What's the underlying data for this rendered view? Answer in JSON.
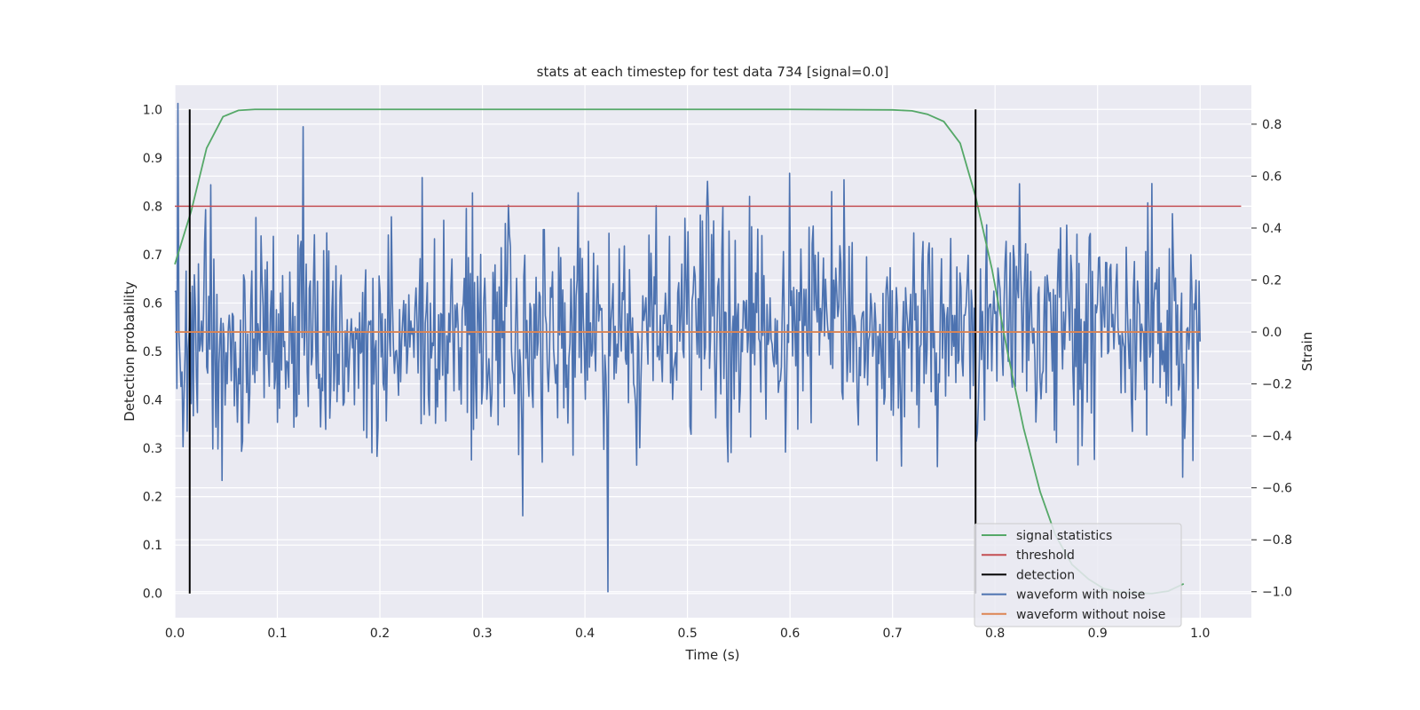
{
  "chart_data": {
    "type": "line",
    "title": "stats at each timestep for test data 734 [signal=0.0]",
    "xlabel": "Time (s)",
    "ylabel_left": "Detection probability",
    "ylabel_right": "Strain",
    "xlim": [
      0.0,
      1.05
    ],
    "ylim_left": [
      -0.05,
      1.05
    ],
    "ylim_right": [
      -1.1,
      0.95
    ],
    "x_ticks": [
      "0.0",
      "0.1",
      "0.2",
      "0.3",
      "0.4",
      "0.5",
      "0.6",
      "0.7",
      "0.8",
      "0.9",
      "1.0"
    ],
    "y_ticks_left": [
      "0.0",
      "0.1",
      "0.2",
      "0.3",
      "0.4",
      "0.5",
      "0.6",
      "0.7",
      "0.8",
      "0.9",
      "1.0"
    ],
    "y_ticks_right": [
      "−1.0",
      "−0.8",
      "−0.6",
      "−0.4",
      "−0.2",
      "0.0",
      "0.2",
      "0.4",
      "0.6",
      "0.8"
    ],
    "grid": true,
    "legend_position": "lower-right",
    "colors": {
      "background": "#eaeaf2",
      "grid": "#ffffff",
      "signal": "#55a868",
      "threshold": "#c44e52",
      "detection": "#000000",
      "noisy": "#4c72b0",
      "clean": "#dd8452"
    },
    "series": [
      {
        "name": "signal statistics",
        "axis": "left",
        "x": [
          0.0,
          0.016,
          0.031,
          0.047,
          0.062,
          0.078,
          0.1,
          0.2,
          0.3,
          0.4,
          0.5,
          0.6,
          0.7,
          0.719,
          0.734,
          0.75,
          0.766,
          0.781,
          0.797,
          0.812,
          0.828,
          0.844,
          0.859,
          0.875,
          0.891,
          0.906,
          0.922,
          0.938,
          0.953,
          0.969,
          0.984
        ],
        "values": [
          0.68,
          0.79,
          0.92,
          0.985,
          0.998,
          1.0,
          1.0,
          1.0,
          1.0,
          1.0,
          1.0,
          1.0,
          0.999,
          0.997,
          0.99,
          0.975,
          0.93,
          0.82,
          0.67,
          0.5,
          0.34,
          0.21,
          0.12,
          0.06,
          0.03,
          0.01,
          0.003,
          0.001,
          0.0,
          0.005,
          0.02
        ]
      },
      {
        "name": "threshold",
        "axis": "left",
        "x": [
          0.0,
          1.04
        ],
        "values": [
          0.8,
          0.8
        ]
      },
      {
        "name": "detection",
        "axis": "left",
        "x": [
          0.0145,
          0.781
        ],
        "values": [
          1.0,
          1.0
        ]
      },
      {
        "name": "waveform with noise",
        "axis": "right",
        "x_range": [
          0.0,
          1.0
        ],
        "peak_values": [
          0.88,
          -1.0,
          0.79,
          0.58
        ],
        "noise_sigma": 0.22
      },
      {
        "name": "waveform without noise",
        "axis": "right",
        "x": [
          0.0,
          1.0
        ],
        "values": [
          0.0,
          0.0
        ]
      }
    ]
  }
}
